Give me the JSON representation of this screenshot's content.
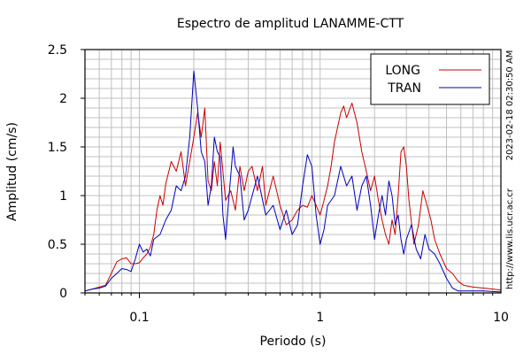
{
  "chart_data": {
    "type": "line",
    "title": "Espectro de amplitud LANAMME-CTT",
    "xlabel": "Periodo (s)",
    "ylabel": "Amplitud (cm/s)",
    "x_scale": "log",
    "xlim": [
      0.05,
      10
    ],
    "ylim": [
      0,
      2.5
    ],
    "x_ticks": [
      {
        "value": 0.1,
        "label": "0.1"
      },
      {
        "value": 1,
        "label": "1"
      },
      {
        "value": 10,
        "label": "10"
      }
    ],
    "y_ticks": [
      {
        "value": 0,
        "label": "0"
      },
      {
        "value": 0.5,
        "label": "0.5"
      },
      {
        "value": 1,
        "label": "1"
      },
      {
        "value": 1.5,
        "label": "1.5"
      },
      {
        "value": 2,
        "label": "2"
      },
      {
        "value": 2.5,
        "label": "2.5"
      }
    ],
    "grid": true,
    "legend": "top-right",
    "annotations": [
      "2023-02-18 02:30:50 AM",
      "http://www.lis.ucr.ac.cr"
    ],
    "series": [
      {
        "name": "LONG",
        "color": "#cc0000",
        "points": [
          [
            0.05,
            0.02
          ],
          [
            0.055,
            0.04
          ],
          [
            0.06,
            0.06
          ],
          [
            0.065,
            0.08
          ],
          [
            0.07,
            0.2
          ],
          [
            0.075,
            0.32
          ],
          [
            0.08,
            0.35
          ],
          [
            0.085,
            0.36
          ],
          [
            0.09,
            0.3
          ],
          [
            0.095,
            0.3
          ],
          [
            0.1,
            0.31
          ],
          [
            0.105,
            0.36
          ],
          [
            0.11,
            0.4
          ],
          [
            0.115,
            0.47
          ],
          [
            0.12,
            0.6
          ],
          [
            0.125,
            0.85
          ],
          [
            0.13,
            1.0
          ],
          [
            0.135,
            0.9
          ],
          [
            0.14,
            1.12
          ],
          [
            0.15,
            1.35
          ],
          [
            0.16,
            1.25
          ],
          [
            0.17,
            1.45
          ],
          [
            0.18,
            1.1
          ],
          [
            0.19,
            1.35
          ],
          [
            0.2,
            1.6
          ],
          [
            0.21,
            1.85
          ],
          [
            0.22,
            1.6
          ],
          [
            0.23,
            1.9
          ],
          [
            0.24,
            1.15
          ],
          [
            0.25,
            1.05
          ],
          [
            0.26,
            1.35
          ],
          [
            0.27,
            1.1
          ],
          [
            0.28,
            1.55
          ],
          [
            0.3,
            0.95
          ],
          [
            0.32,
            1.05
          ],
          [
            0.34,
            0.85
          ],
          [
            0.36,
            1.3
          ],
          [
            0.38,
            1.05
          ],
          [
            0.4,
            1.25
          ],
          [
            0.42,
            1.3
          ],
          [
            0.45,
            1.05
          ],
          [
            0.48,
            1.3
          ],
          [
            0.5,
            0.9
          ],
          [
            0.55,
            1.2
          ],
          [
            0.6,
            0.9
          ],
          [
            0.65,
            0.7
          ],
          [
            0.7,
            0.75
          ],
          [
            0.75,
            0.85
          ],
          [
            0.8,
            0.9
          ],
          [
            0.85,
            0.88
          ],
          [
            0.9,
            1.0
          ],
          [
            0.95,
            0.9
          ],
          [
            1.0,
            0.8
          ],
          [
            1.05,
            0.95
          ],
          [
            1.1,
            1.1
          ],
          [
            1.15,
            1.3
          ],
          [
            1.2,
            1.55
          ],
          [
            1.3,
            1.85
          ],
          [
            1.35,
            1.92
          ],
          [
            1.4,
            1.8
          ],
          [
            1.5,
            1.95
          ],
          [
            1.6,
            1.75
          ],
          [
            1.7,
            1.45
          ],
          [
            1.8,
            1.25
          ],
          [
            1.9,
            1.05
          ],
          [
            2.0,
            1.2
          ],
          [
            2.1,
            0.95
          ],
          [
            2.2,
            0.75
          ],
          [
            2.3,
            0.6
          ],
          [
            2.4,
            0.5
          ],
          [
            2.5,
            0.75
          ],
          [
            2.6,
            0.6
          ],
          [
            2.7,
            1.0
          ],
          [
            2.8,
            1.45
          ],
          [
            2.9,
            1.5
          ],
          [
            3.0,
            1.3
          ],
          [
            3.1,
            0.95
          ],
          [
            3.3,
            0.5
          ],
          [
            3.5,
            0.7
          ],
          [
            3.7,
            1.05
          ],
          [
            3.9,
            0.9
          ],
          [
            4.1,
            0.75
          ],
          [
            4.3,
            0.55
          ],
          [
            4.6,
            0.4
          ],
          [
            5.0,
            0.25
          ],
          [
            5.4,
            0.2
          ],
          [
            5.8,
            0.12
          ],
          [
            6.2,
            0.08
          ],
          [
            7.0,
            0.06
          ],
          [
            8.0,
            0.05
          ],
          [
            9.0,
            0.04
          ],
          [
            10.0,
            0.03
          ]
        ]
      },
      {
        "name": "TRAN",
        "color": "#0000bb",
        "points": [
          [
            0.05,
            0.02
          ],
          [
            0.055,
            0.04
          ],
          [
            0.06,
            0.05
          ],
          [
            0.065,
            0.07
          ],
          [
            0.07,
            0.15
          ],
          [
            0.075,
            0.2
          ],
          [
            0.08,
            0.25
          ],
          [
            0.085,
            0.24
          ],
          [
            0.09,
            0.22
          ],
          [
            0.095,
            0.35
          ],
          [
            0.1,
            0.5
          ],
          [
            0.105,
            0.42
          ],
          [
            0.11,
            0.45
          ],
          [
            0.115,
            0.38
          ],
          [
            0.12,
            0.55
          ],
          [
            0.13,
            0.6
          ],
          [
            0.14,
            0.75
          ],
          [
            0.15,
            0.85
          ],
          [
            0.16,
            1.1
          ],
          [
            0.17,
            1.05
          ],
          [
            0.18,
            1.2
          ],
          [
            0.19,
            1.6
          ],
          [
            0.2,
            2.28
          ],
          [
            0.21,
            1.9
          ],
          [
            0.22,
            1.45
          ],
          [
            0.23,
            1.35
          ],
          [
            0.24,
            0.9
          ],
          [
            0.25,
            1.1
          ],
          [
            0.26,
            1.6
          ],
          [
            0.27,
            1.45
          ],
          [
            0.28,
            1.4
          ],
          [
            0.29,
            0.8
          ],
          [
            0.3,
            0.55
          ],
          [
            0.31,
            0.9
          ],
          [
            0.32,
            1.2
          ],
          [
            0.33,
            1.5
          ],
          [
            0.34,
            1.3
          ],
          [
            0.36,
            1.2
          ],
          [
            0.38,
            0.75
          ],
          [
            0.4,
            0.85
          ],
          [
            0.45,
            1.2
          ],
          [
            0.5,
            0.8
          ],
          [
            0.55,
            0.9
          ],
          [
            0.6,
            0.65
          ],
          [
            0.65,
            0.85
          ],
          [
            0.7,
            0.6
          ],
          [
            0.75,
            0.7
          ],
          [
            0.8,
            1.1
          ],
          [
            0.85,
            1.42
          ],
          [
            0.9,
            1.3
          ],
          [
            0.95,
            0.8
          ],
          [
            1.0,
            0.5
          ],
          [
            1.05,
            0.65
          ],
          [
            1.1,
            0.9
          ],
          [
            1.2,
            1.0
          ],
          [
            1.3,
            1.3
          ],
          [
            1.4,
            1.1
          ],
          [
            1.5,
            1.2
          ],
          [
            1.6,
            0.85
          ],
          [
            1.7,
            1.1
          ],
          [
            1.8,
            1.2
          ],
          [
            1.9,
            0.9
          ],
          [
            2.0,
            0.55
          ],
          [
            2.1,
            0.8
          ],
          [
            2.2,
            1.0
          ],
          [
            2.3,
            0.8
          ],
          [
            2.4,
            1.15
          ],
          [
            2.5,
            1.0
          ],
          [
            2.6,
            0.7
          ],
          [
            2.7,
            0.8
          ],
          [
            2.8,
            0.55
          ],
          [
            2.9,
            0.4
          ],
          [
            3.0,
            0.55
          ],
          [
            3.2,
            0.7
          ],
          [
            3.4,
            0.45
          ],
          [
            3.6,
            0.35
          ],
          [
            3.8,
            0.6
          ],
          [
            4.0,
            0.45
          ],
          [
            4.3,
            0.4
          ],
          [
            4.6,
            0.3
          ],
          [
            5.0,
            0.15
          ],
          [
            5.4,
            0.05
          ],
          [
            5.8,
            0.02
          ],
          [
            6.5,
            0.02
          ],
          [
            8.0,
            0.02
          ],
          [
            10.0,
            0.01
          ]
        ]
      }
    ]
  }
}
